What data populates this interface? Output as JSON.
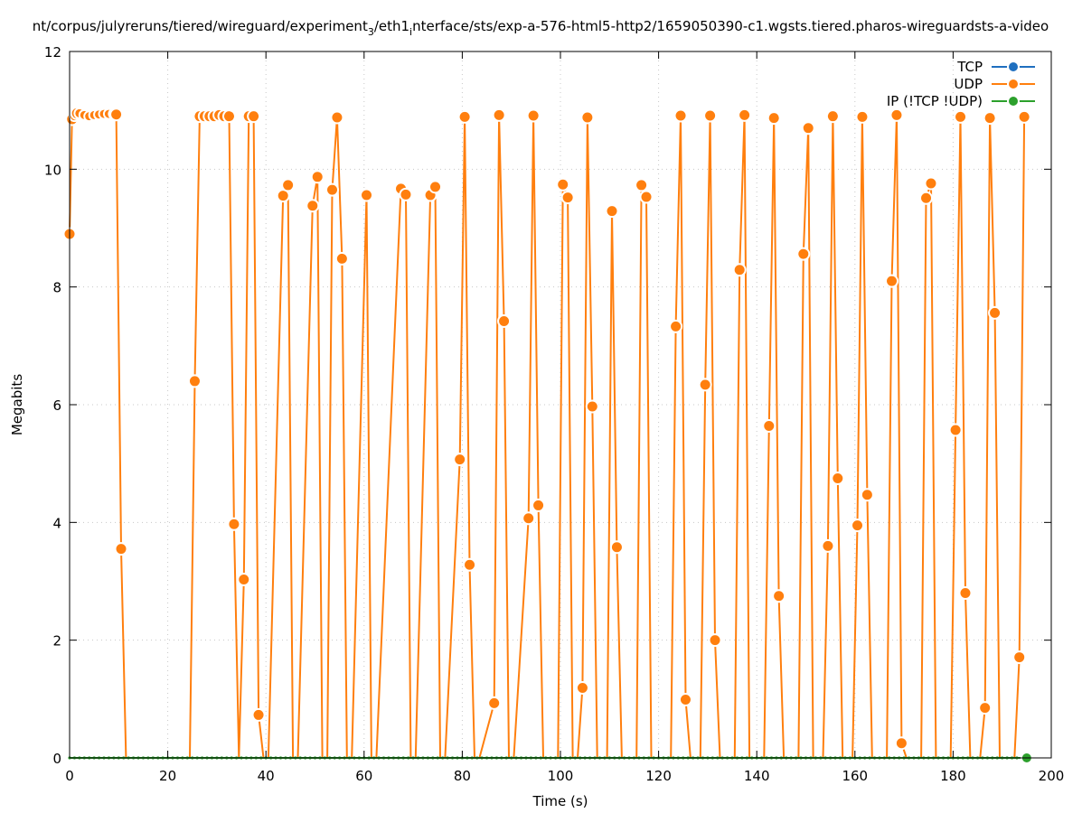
{
  "chart_data": {
    "type": "line",
    "title": "nt/corpus/julyreruns/tiered/wireguard/experiment_3/eth1_interface/sts/exp-a-576-html5-http2/1659050390-c1.wgsts.tiered.pharos-wireguardsts-a-video",
    "title_parts": {
      "p1": "nt/corpus/julyreruns/tiered/wireguard/experiment",
      "sub1": "3",
      "p2": "/eth1",
      "sub2": "i",
      "p3": "nterface/sts/exp-a-576-html5-http2/1659050390-c1.wgsts.tiered.pharos-wireguardsts-a-video"
    },
    "xlabel": "Time (s)",
    "ylabel": "Megabits",
    "xlim": [
      0,
      200
    ],
    "ylim": [
      0,
      12
    ],
    "xticks": [
      "0",
      "20",
      "40",
      "60",
      "80",
      "100",
      "120",
      "140",
      "160",
      "180",
      "200"
    ],
    "yticks": [
      "0",
      "2",
      "4",
      "6",
      "8",
      "10",
      "12"
    ],
    "grid": true,
    "legend_position": "top-right",
    "series": [
      {
        "name": "TCP",
        "color": "#1f6fbf",
        "x": [],
        "y": []
      },
      {
        "name": "UDP",
        "color": "#ff7f0e",
        "x": [
          0,
          0.5,
          1,
          1.5,
          2,
          3,
          4,
          5,
          6,
          7,
          8,
          9,
          9.5,
          10.5,
          11.5,
          24.5,
          25.5,
          26.5,
          27.5,
          28.5,
          29.5,
          30.5,
          31.5,
          32.5,
          33.5,
          34.5,
          35.5,
          36.5,
          37.5,
          38.5,
          39.5,
          40.5,
          43.5,
          44.5,
          45.5,
          46.5,
          49.5,
          50.5,
          51.5,
          52.5,
          53.5,
          54.5,
          55.5,
          56.5,
          57.5,
          60.5,
          61.5,
          62.5,
          67.5,
          68.5,
          69.5,
          70.5,
          73.5,
          74.5,
          75.5,
          76.5,
          79.5,
          80.5,
          81.5,
          82.5,
          83.5,
          86.5,
          87.5,
          88.5,
          89.5,
          90.5,
          93.5,
          94.5,
          95.5,
          96.5,
          99.5,
          100.5,
          101.5,
          102.5,
          103.5,
          104.5,
          105.5,
          106.5,
          107.5,
          109.5,
          110.5,
          111.5,
          112.5,
          115.5,
          116.5,
          117.5,
          118.5,
          122.5,
          123.5,
          124.5,
          125.5,
          126.5,
          128.5,
          129.5,
          130.5,
          131.5,
          132.5,
          135.5,
          136.5,
          137.5,
          138.5,
          141.5,
          142.5,
          143.5,
          144.5,
          145.5,
          148.5,
          149.5,
          150.5,
          151.5,
          153.5,
          154.5,
          155.5,
          156.5,
          157.5,
          159.5,
          160.5,
          161.5,
          162.5,
          163.5,
          166.5,
          167.5,
          168.5,
          169.5,
          170.5,
          173.5,
          174.5,
          175.5,
          176.5,
          179.5,
          180.5,
          181.5,
          182.5,
          183.5,
          185.5,
          186.5,
          187.5,
          188.5,
          189.5,
          192.5,
          193.5,
          194.5
        ],
        "y": [
          8.9,
          10.85,
          10.9,
          10.95,
          10.95,
          10.92,
          10.9,
          10.92,
          10.93,
          10.94,
          10.94,
          10.94,
          10.93,
          3.55,
          0,
          0,
          6.4,
          10.9,
          10.9,
          10.9,
          10.9,
          10.92,
          10.9,
          10.9,
          3.97,
          0,
          3.03,
          10.9,
          10.9,
          0.73,
          0,
          0,
          9.55,
          9.73,
          0,
          0,
          9.38,
          9.87,
          0,
          0,
          9.65,
          10.88,
          8.48,
          0,
          0,
          9.56,
          0,
          0,
          9.67,
          9.57,
          0,
          0,
          9.56,
          9.7,
          0,
          0,
          5.07,
          10.89,
          3.28,
          0,
          0,
          0.93,
          10.92,
          7.42,
          0,
          0,
          4.07,
          10.91,
          4.29,
          0,
          0,
          9.74,
          9.52,
          0,
          0,
          1.19,
          10.88,
          5.97,
          0,
          0,
          9.29,
          3.58,
          0,
          0,
          9.73,
          9.53,
          0,
          0,
          7.33,
          10.91,
          0.99,
          0,
          0,
          6.34,
          10.91,
          2.0,
          0,
          0,
          8.29,
          10.92,
          0,
          0,
          5.64,
          10.87,
          2.75,
          0,
          0,
          8.56,
          10.7,
          0,
          0,
          3.6,
          10.9,
          4.75,
          0,
          0,
          3.95,
          10.89,
          4.47,
          0,
          0,
          8.1,
          10.92,
          0.25,
          0,
          0,
          9.51,
          9.76,
          0,
          0,
          5.57,
          10.89,
          2.8,
          0,
          0,
          0.85,
          10.87,
          7.56,
          0,
          0,
          1.71,
          10.89
        ]
      },
      {
        "name": "IP (!TCP  !UDP)",
        "color": "#2ca02c",
        "x": [
          0,
          1,
          2,
          3,
          4,
          5,
          6,
          7,
          8,
          9,
          10,
          11,
          12,
          13,
          14,
          15,
          16,
          17,
          18,
          19,
          20,
          21,
          22,
          23,
          24,
          25,
          26,
          27,
          28,
          29,
          30,
          31,
          32,
          33,
          34,
          35,
          36,
          37,
          38,
          39,
          40,
          41,
          42,
          43,
          44,
          45,
          46,
          47,
          48,
          49,
          50,
          51,
          52,
          53,
          54,
          55,
          56,
          57,
          58,
          59,
          60,
          61,
          62,
          63,
          64,
          65,
          66,
          67,
          68,
          69,
          70,
          71,
          72,
          73,
          74,
          75,
          76,
          77,
          78,
          79,
          80,
          81,
          82,
          83,
          84,
          85,
          86,
          87,
          88,
          89,
          90,
          91,
          92,
          93,
          94,
          95,
          96,
          97,
          98,
          99,
          100,
          101,
          102,
          103,
          104,
          105,
          106,
          107,
          108,
          109,
          110,
          111,
          112,
          113,
          114,
          115,
          116,
          117,
          118,
          119,
          120,
          121,
          122,
          123,
          124,
          125,
          126,
          127,
          128,
          129,
          130,
          131,
          132,
          133,
          134,
          135,
          136,
          137,
          138,
          139,
          140,
          141,
          142,
          143,
          144,
          145,
          146,
          147,
          148,
          149,
          150,
          151,
          152,
          153,
          154,
          155,
          156,
          157,
          158,
          159,
          160,
          161,
          162,
          163,
          164,
          165,
          166,
          167,
          168,
          169,
          170,
          171,
          172,
          173,
          174,
          175,
          176,
          177,
          178,
          179,
          180,
          181,
          182,
          183,
          184,
          185,
          186,
          187,
          188,
          189,
          190,
          191,
          192,
          193,
          194,
          195
        ],
        "y": [
          0,
          0,
          0,
          0,
          0,
          0,
          0,
          0,
          0,
          0,
          0,
          0,
          0,
          0,
          0,
          0,
          0,
          0,
          0,
          0,
          0,
          0,
          0,
          0,
          0,
          0,
          0,
          0,
          0,
          0,
          0,
          0,
          0,
          0,
          0,
          0,
          0,
          0,
          0,
          0,
          0,
          0,
          0,
          0,
          0,
          0,
          0,
          0,
          0,
          0,
          0,
          0,
          0,
          0,
          0,
          0,
          0,
          0,
          0,
          0,
          0,
          0,
          0,
          0,
          0,
          0,
          0,
          0,
          0,
          0,
          0,
          0,
          0,
          0,
          0,
          0,
          0,
          0,
          0,
          0,
          0,
          0,
          0,
          0,
          0,
          0,
          0,
          0,
          0,
          0,
          0,
          0,
          0,
          0,
          0,
          0,
          0,
          0,
          0,
          0,
          0,
          0,
          0,
          0,
          0,
          0,
          0,
          0,
          0,
          0,
          0,
          0,
          0,
          0,
          0,
          0,
          0,
          0,
          0,
          0,
          0,
          0,
          0,
          0,
          0,
          0,
          0,
          0,
          0,
          0,
          0,
          0,
          0,
          0,
          0,
          0,
          0,
          0,
          0,
          0,
          0,
          0,
          0,
          0,
          0,
          0,
          0,
          0,
          0,
          0,
          0,
          0,
          0,
          0,
          0,
          0,
          0,
          0,
          0,
          0,
          0,
          0,
          0,
          0,
          0,
          0,
          0,
          0,
          0,
          0,
          0,
          0,
          0,
          0,
          0,
          0,
          0,
          0,
          0,
          0,
          0,
          0,
          0,
          0,
          0,
          0,
          0,
          0,
          0,
          0,
          0,
          0,
          0,
          0,
          0,
          0
        ]
      }
    ]
  }
}
